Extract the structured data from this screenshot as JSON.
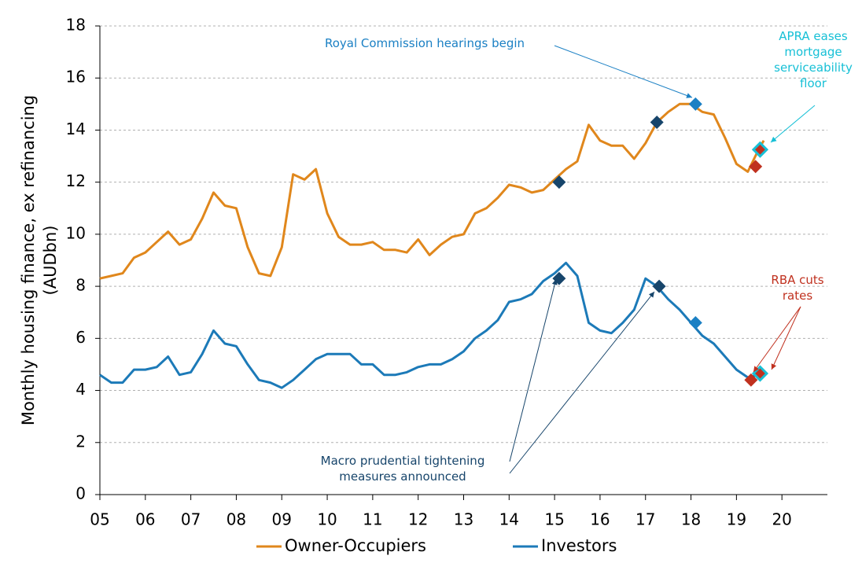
{
  "chart_data": {
    "type": "line",
    "y_label": [
      "Monthly housing finance, ex refinancing",
      "(AUDbn)"
    ],
    "x": [
      2005,
      2005.25,
      2005.5,
      2005.75,
      2006,
      2006.25,
      2006.5,
      2006.75,
      2007,
      2007.25,
      2007.5,
      2007.75,
      2008,
      2008.25,
      2008.5,
      2008.75,
      2009,
      2009.25,
      2009.5,
      2009.75,
      2010,
      2010.25,
      2010.5,
      2010.75,
      2011,
      2011.25,
      2011.5,
      2011.75,
      2012,
      2012.25,
      2012.5,
      2012.75,
      2013,
      2013.25,
      2013.5,
      2013.75,
      2014,
      2014.25,
      2014.5,
      2014.75,
      2015,
      2015.25,
      2015.5,
      2015.75,
      2016,
      2016.25,
      2016.5,
      2016.75,
      2017,
      2017.25,
      2017.5,
      2017.75,
      2018,
      2018.25,
      2018.5,
      2018.75,
      2019,
      2019.25,
      2019.5,
      2019.6
    ],
    "series": [
      {
        "name": "Owner-Occupiers",
        "color": "#e0871c",
        "values": [
          8.3,
          8.4,
          8.5,
          9.1,
          9.3,
          9.7,
          10.1,
          9.6,
          9.8,
          10.6,
          11.6,
          11.1,
          11.0,
          9.5,
          8.5,
          8.4,
          9.5,
          12.3,
          12.1,
          12.5,
          10.8,
          9.9,
          9.6,
          9.6,
          9.7,
          9.4,
          9.4,
          9.3,
          9.8,
          9.2,
          9.6,
          9.9,
          10.0,
          10.8,
          11.0,
          11.4,
          11.9,
          11.8,
          11.6,
          11.7,
          12.1,
          12.5,
          12.8,
          14.2,
          13.6,
          13.4,
          13.4,
          12.9,
          13.5,
          14.3,
          14.7,
          15.0,
          15.0,
          14.7,
          14.6,
          13.7,
          12.7,
          12.4,
          13.3,
          13.6
        ]
      },
      {
        "name": "Investors",
        "color": "#1c7ab8",
        "values": [
          4.6,
          4.3,
          4.3,
          4.8,
          4.8,
          4.9,
          5.3,
          4.6,
          4.7,
          5.4,
          6.3,
          5.8,
          5.7,
          5.0,
          4.4,
          4.3,
          4.1,
          4.4,
          4.8,
          5.2,
          5.4,
          5.4,
          5.4,
          5.0,
          5.0,
          4.6,
          4.6,
          4.7,
          4.9,
          5.0,
          5.0,
          5.2,
          5.5,
          6.0,
          6.3,
          6.7,
          7.4,
          7.5,
          7.7,
          8.2,
          8.5,
          8.9,
          8.4,
          6.6,
          6.3,
          6.2,
          6.6,
          7.1,
          8.3,
          8.0,
          7.5,
          7.1,
          6.6,
          6.1,
          5.8,
          5.3,
          4.8,
          4.5,
          4.6,
          4.7
        ]
      }
    ],
    "markers": [
      {
        "x": 2015.1,
        "y": 12.0,
        "color": "#17456b"
      },
      {
        "x": 2017.25,
        "y": 14.3,
        "color": "#17456b"
      },
      {
        "x": 2018.1,
        "y": 15.0,
        "color": "#1b80c4"
      },
      {
        "x": 2019.42,
        "y": 12.6,
        "color": "#c0311f"
      },
      {
        "x": 2019.52,
        "y": 13.25,
        "color": "#17c0d6"
      },
      {
        "x": 2015.1,
        "y": 8.3,
        "color": "#17456b"
      },
      {
        "x": 2017.3,
        "y": 8.0,
        "color": "#17456b"
      },
      {
        "x": 2018.1,
        "y": 6.6,
        "color": "#1b80c4"
      },
      {
        "x": 2019.32,
        "y": 4.4,
        "color": "#c0311f"
      },
      {
        "x": 2019.52,
        "y": 4.65,
        "color": "#17c0d6"
      }
    ],
    "annotations": [
      {
        "text": [
          "Royal Commission hearings begin"
        ],
        "color": "#1b80c4"
      },
      {
        "text": [
          "APRA eases",
          "mortgage",
          "serviceability",
          "floor"
        ],
        "color": "#17c0d6"
      },
      {
        "text": [
          "RBA cuts",
          "rates"
        ],
        "color": "#c0311f"
      },
      {
        "text": [
          "Macro prudential tightening",
          "measures announced"
        ],
        "color": "#17456b"
      }
    ],
    "xlim": [
      2005,
      2021
    ],
    "ylim": [
      0,
      18
    ],
    "xticks": [
      {
        "value": 2005,
        "label": "05"
      },
      {
        "value": 2006,
        "label": "06"
      },
      {
        "value": 2007,
        "label": "07"
      },
      {
        "value": 2008,
        "label": "08"
      },
      {
        "value": 2009,
        "label": "09"
      },
      {
        "value": 2010,
        "label": "10"
      },
      {
        "value": 2011,
        "label": "11"
      },
      {
        "value": 2012,
        "label": "12"
      },
      {
        "value": 2013,
        "label": "13"
      },
      {
        "value": 2014,
        "label": "14"
      },
      {
        "value": 2015,
        "label": "15"
      },
      {
        "value": 2016,
        "label": "16"
      },
      {
        "value": 2017,
        "label": "17"
      },
      {
        "value": 2018,
        "label": "18"
      },
      {
        "value": 2019,
        "label": "19"
      },
      {
        "value": 2020,
        "label": "20"
      }
    ],
    "yticks": [
      0,
      2,
      4,
      6,
      8,
      10,
      12,
      14,
      16,
      18
    ],
    "grid": true
  }
}
